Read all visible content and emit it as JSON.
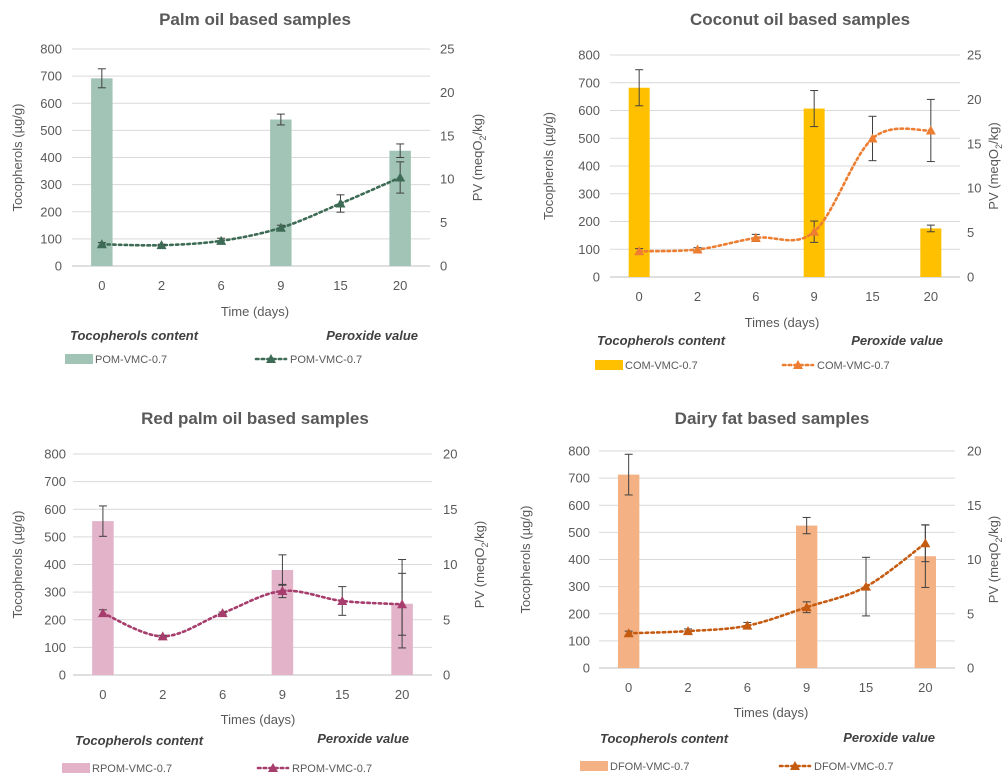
{
  "chart_data": [
    {
      "type": "bar+line",
      "title": "Palm oil based samples",
      "xlabel": "Time (days)",
      "ylabel_left": "Tocopherols (µg/g)",
      "ylabel_right_parts": [
        "PV (meqO",
        "2",
        "/kg)"
      ],
      "categories": [
        "0",
        "2",
        "6",
        "9",
        "15",
        "20"
      ],
      "ylim_left": [
        0,
        800
      ],
      "yticks_left": [
        0,
        100,
        200,
        300,
        400,
        500,
        600,
        700,
        800
      ],
      "ylim_right": [
        0,
        25
      ],
      "yticks_right": [
        0,
        5,
        10,
        15,
        20,
        25
      ],
      "bar_series": {
        "name": "POM-VMC-0.7",
        "values": [
          692,
          null,
          null,
          540,
          null,
          425
        ],
        "errors": [
          35,
          null,
          null,
          20,
          null,
          25
        ]
      },
      "line_series": {
        "name": "POM-VMC-0.7",
        "values": [
          2.5,
          2.4,
          2.9,
          4.4,
          7.2,
          10.2
        ],
        "errors": [
          0.2,
          0.1,
          0.3,
          0.3,
          1.0,
          1.8
        ]
      },
      "legend_left_title": "Tocopherols content",
      "legend_right_title": "Peroxide value",
      "bar_color": "#a2c4b6",
      "line_color": "#3d6b55",
      "grid": true
    },
    {
      "type": "bar+line",
      "title": "Coconut oil based samples",
      "xlabel": "Times (days)",
      "ylabel_left": "Tocopherols (µg/g)",
      "ylabel_right_parts": [
        "PV (meqO",
        "2",
        "/kg)"
      ],
      "categories": [
        "0",
        "2",
        "6",
        "9",
        "15",
        "20"
      ],
      "ylim_left": [
        0,
        800
      ],
      "yticks_left": [
        0,
        100,
        200,
        300,
        400,
        500,
        600,
        700,
        800
      ],
      "ylim_right": [
        0,
        25
      ],
      "yticks_right": [
        0,
        5,
        10,
        15,
        20,
        25
      ],
      "bar_series": {
        "name": "COM-VMC-0.7",
        "values": [
          682,
          null,
          null,
          607,
          null,
          175
        ],
        "errors": [
          65,
          null,
          null,
          65,
          null,
          12
        ]
      },
      "line_series": {
        "name": "COM-VMC-0.7",
        "values": [
          2.9,
          3.1,
          4.4,
          5.1,
          15.6,
          16.5
        ],
        "errors": [
          0.3,
          0.2,
          0.4,
          1.2,
          2.5,
          3.5
        ]
      },
      "legend_left_title": "Tocopherols content",
      "legend_right_title": "Peroxide value",
      "bar_color": "#ffc000",
      "line_color": "#ed7d31",
      "grid": true
    },
    {
      "type": "bar+line",
      "title": "Red palm oil based samples",
      "xlabel": "Times (days)",
      "ylabel_left": "Tocopherols (µg/g)",
      "ylabel_right_parts": [
        "PV (meqO",
        "2",
        "/kg)"
      ],
      "categories": [
        "0",
        "2",
        "6",
        "9",
        "15",
        "20"
      ],
      "ylim_left": [
        0,
        800
      ],
      "yticks_left": [
        0,
        100,
        200,
        300,
        400,
        500,
        600,
        700,
        800
      ],
      "ylim_right": [
        0,
        20
      ],
      "yticks_right": [
        0,
        5,
        10,
        15,
        20
      ],
      "bar_series": {
        "name": "RPOM-VMC-0.7",
        "values": [
          557,
          null,
          null,
          380,
          null,
          258
        ],
        "errors": [
          55,
          null,
          null,
          55,
          null,
          160
        ]
      },
      "line_series": {
        "name": "RPOM-VMC-0.7",
        "values": [
          5.6,
          3.5,
          5.6,
          7.6,
          6.7,
          6.4
        ],
        "errors": [
          0.3,
          0.1,
          0.1,
          0.6,
          1.3,
          2.8
        ]
      },
      "legend_left_title": "Tocopherols content",
      "legend_right_title": "Peroxide value",
      "bar_color": "#e2b3c9",
      "line_color": "#a63d6c",
      "grid": true
    },
    {
      "type": "bar+line",
      "title": "Dairy fat based samples",
      "xlabel": "Times (days)",
      "ylabel_left": "Tocopherols (µg/g)",
      "ylabel_right_parts": [
        "PV (meqO",
        "2",
        "/kg)"
      ],
      "categories": [
        "0",
        "2",
        "6",
        "9",
        "15",
        "20"
      ],
      "ylim_left": [
        0,
        800
      ],
      "yticks_left": [
        0,
        100,
        200,
        300,
        400,
        500,
        600,
        700,
        800
      ],
      "ylim_right": [
        0,
        20
      ],
      "yticks_right": [
        0,
        5,
        10,
        15,
        20
      ],
      "bar_series": {
        "name": "DFOM-VMC-0.7",
        "values": [
          713,
          null,
          null,
          525,
          null,
          412
        ],
        "errors": [
          75,
          null,
          null,
          30,
          null,
          115
        ]
      },
      "line_series": {
        "name": "DFOM-VMC-0.7",
        "values": [
          3.2,
          3.4,
          3.9,
          5.6,
          7.5,
          11.5
        ],
        "errors": [
          0.2,
          0.2,
          0.3,
          0.5,
          2.7,
          1.7
        ]
      },
      "legend_left_title": "Tocopherols content",
      "legend_right_title": "Peroxide value",
      "bar_color": "#f4b183",
      "line_color": "#c55a11",
      "grid": true
    }
  ]
}
